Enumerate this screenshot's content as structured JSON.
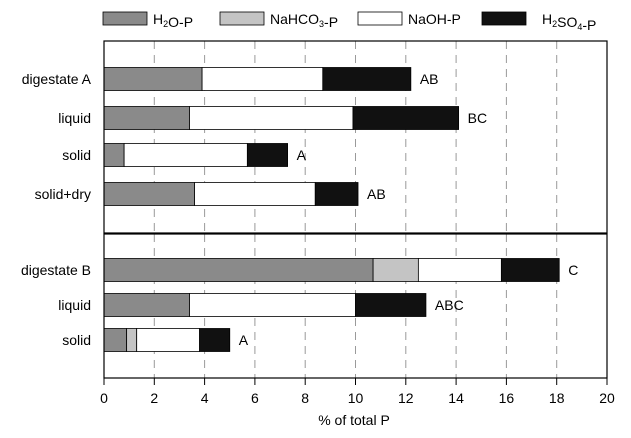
{
  "chart_data": {
    "type": "bar",
    "orientation": "horizontal",
    "stacked": true,
    "xlabel": "% of total P",
    "xlim": [
      0,
      20
    ],
    "x_ticks": [
      "0",
      "2",
      "4",
      "6",
      "8",
      "10",
      "12",
      "14",
      "16",
      "18",
      "20"
    ],
    "grid": "vertical dashed",
    "legend_position": "top",
    "legend": [
      {
        "text": "H",
        "sub": "2",
        "tail": "O-P",
        "color": "#8a8a8a"
      },
      {
        "text": "NaHCO",
        "sub": "3",
        "tail": "-P",
        "color": "#c4c4c4"
      },
      {
        "text": "NaOH-P",
        "sub": "",
        "tail": "",
        "color": "#ffffff"
      },
      {
        "text": "H",
        "sub": "2",
        "tail": "SO",
        "sub2": "4",
        "tail2": "-P",
        "color": "#111111"
      }
    ],
    "series_names": [
      "H2O-P",
      "NaHCO3-P",
      "NaOH-P",
      "H2SO4-P"
    ],
    "panels": [
      {
        "categories": [
          "digestate A",
          "liquid",
          "solid",
          "solid+dry"
        ],
        "values": [
          [
            3.9,
            0.0,
            4.8,
            3.5
          ],
          [
            3.4,
            0.0,
            6.5,
            4.2
          ],
          [
            0.8,
            0.0,
            4.9,
            1.6
          ],
          [
            3.6,
            0.0,
            4.8,
            1.7
          ]
        ],
        "annotations": [
          "AB",
          "BC",
          "A",
          "AB"
        ]
      },
      {
        "categories": [
          "digestate B",
          "liquid",
          "solid"
        ],
        "values": [
          [
            10.7,
            1.8,
            3.3,
            2.3
          ],
          [
            3.4,
            0.0,
            6.6,
            2.8
          ],
          [
            0.9,
            0.4,
            2.5,
            1.2
          ]
        ],
        "annotations": [
          "C",
          "ABC",
          "A"
        ]
      }
    ]
  }
}
